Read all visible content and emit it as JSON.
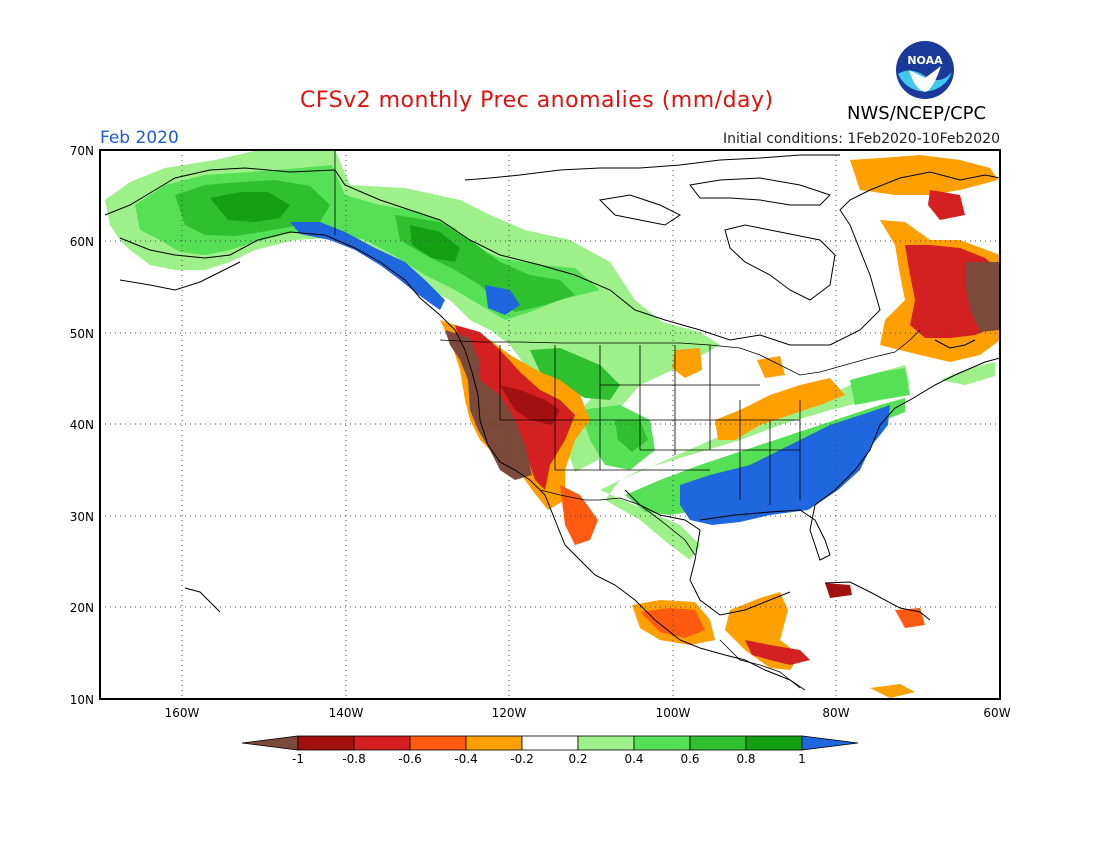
{
  "title": "CFSv2 monthly Prec anomalies (mm/day)",
  "month": "Feb 2020",
  "initial_conditions": "Initial conditions: 1Feb2020-10Feb2020",
  "agency": "NWS/NCEP/CPC",
  "logo": "NOAA",
  "lat_labels": [
    "70N",
    "60N",
    "50N",
    "40N",
    "30N",
    "20N",
    "10N"
  ],
  "lon_labels": [
    "160W",
    "140W",
    "120W",
    "100W",
    "80W",
    "60W"
  ],
  "colorbar": {
    "labels": [
      "-1",
      "-0.8",
      "-0.6",
      "-0.4",
      "-0.2",
      "0.2",
      "0.4",
      "0.6",
      "0.8",
      "1"
    ],
    "colors": [
      "#7b4a3a",
      "#a31010",
      "#d42020",
      "#ff5a10",
      "#ff9f00",
      "#ffffff",
      "#9ef08a",
      "#55e055",
      "#2fc02f",
      "#13a013",
      "#1f67de"
    ]
  },
  "palette": {
    "lt_green": "#9ef08a",
    "green": "#55e055",
    "mid_green": "#2fc02f",
    "dk_green": "#13a013",
    "blue": "#1f67de",
    "orange": "#ff9f00",
    "red_orange": "#ff5a10",
    "red": "#d42020",
    "dk_red": "#a31010",
    "brown": "#7b4a3a"
  },
  "chart_data": {
    "type": "heatmap",
    "title": "CFSv2 monthly Prec anomalies (mm/day)",
    "lon_range": [
      -170,
      -60
    ],
    "lat_range": [
      10,
      70
    ],
    "units": "mm/day",
    "regions": [
      {
        "name": "Alaska / Yukon",
        "anomaly": "+0.4 to +0.8"
      },
      {
        "name": "Gulf of Alaska coast / BC",
        "anomaly": "> +1"
      },
      {
        "name": "N Rockies / Alberta",
        "anomaly": "+0.4 to > +1"
      },
      {
        "name": "California / Oregon coast",
        "anomaly": "< -1"
      },
      {
        "name": "Great Basin",
        "anomaly": "-0.4 to -0.8"
      },
      {
        "name": "Southeast US / Tennessee Valley",
        "anomaly": "> +1"
      },
      {
        "name": "Mid-Atlantic / New England",
        "anomaly": "+0.4 to > +1"
      },
      {
        "name": "Great Lakes",
        "anomaly": "-0.2 to -0.4"
      },
      {
        "name": "Labrador / Quebec",
        "anomaly": "-0.4 to < -1"
      },
      {
        "name": "S Mexico / Central America",
        "anomaly": "-0.4 to -0.8"
      }
    ]
  }
}
